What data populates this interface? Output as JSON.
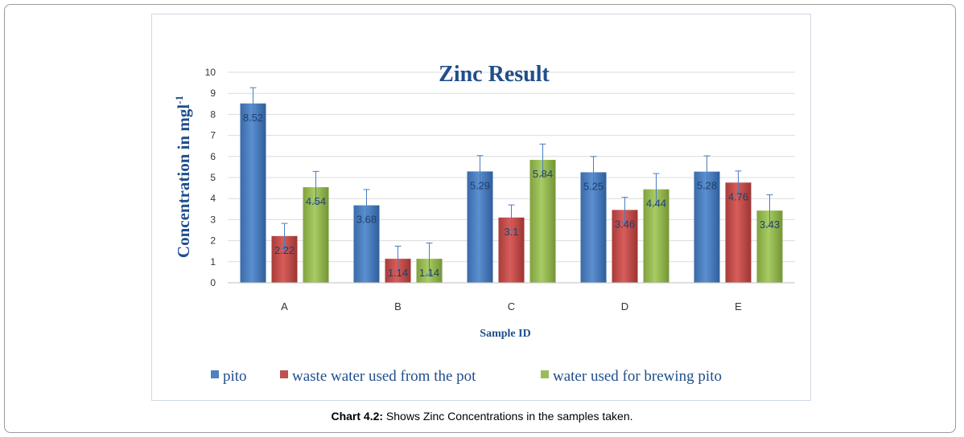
{
  "caption": {
    "label": "Chart 4.2:",
    "text": " Shows Zinc Concentrations in the samples taken."
  },
  "chart_data": {
    "type": "bar",
    "title": "Zinc Result",
    "xlabel": "Sample ID",
    "ylabel": "Concentration in mgl",
    "ylabel_superscript": "-1",
    "ylim": [
      0,
      10
    ],
    "yticks": [
      0,
      1,
      2,
      3,
      4,
      5,
      6,
      7,
      8,
      9,
      10
    ],
    "grid": true,
    "legend_position": "bottom",
    "categories": [
      "A",
      "B",
      "C",
      "D",
      "E"
    ],
    "series": [
      {
        "name": "pito",
        "color": "#4f81bd",
        "values": [
          8.52,
          3.68,
          5.29,
          5.25,
          5.28
        ],
        "labels": [
          "8.52",
          "3.68",
          "5.29",
          "5.25",
          "5.28"
        ],
        "error": [
          0.75,
          0.75,
          0.75,
          0.75,
          0.75
        ]
      },
      {
        "name": "waste water used from the pot",
        "color": "#c0504d",
        "values": [
          2.22,
          1.14,
          3.1,
          3.46,
          4.76
        ],
        "labels": [
          "2.22",
          "1.14",
          "3.1",
          "3.46",
          "4.76"
        ],
        "error": [
          0.6,
          0.6,
          0.6,
          0.6,
          0.55
        ]
      },
      {
        "name": "water used for brewing pito",
        "color": "#9bbb59",
        "values": [
          4.54,
          1.14,
          5.84,
          4.44,
          3.43
        ],
        "labels": [
          "4.54",
          "1.14",
          "5.84",
          "4.44",
          "3.43"
        ],
        "error": [
          0.75,
          0.75,
          0.75,
          0.75,
          0.75
        ]
      }
    ]
  }
}
